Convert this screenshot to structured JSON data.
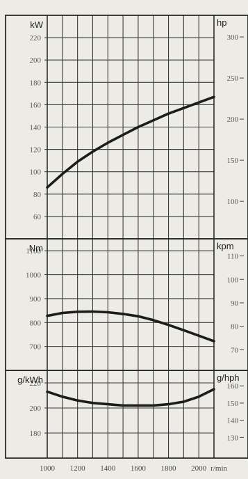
{
  "chart_data": [
    {
      "type": "line",
      "title": "",
      "x_axis": {
        "label": "",
        "range": [
          1000,
          2100
        ]
      },
      "left_axis": {
        "unit": "kW",
        "range": [
          40,
          240
        ],
        "ticks": [
          60,
          80,
          100,
          120,
          140,
          160,
          180,
          200,
          220
        ]
      },
      "right_axis": {
        "unit": "hp",
        "range": [
          54.4,
          326.3
        ],
        "ticks": [
          100,
          150,
          200,
          250,
          300
        ]
      },
      "grid": true,
      "series": [
        {
          "x": [
            1000,
            1100,
            1200,
            1300,
            1400,
            1500,
            1600,
            1700,
            1800,
            1900,
            2000,
            2100
          ],
          "y": [
            86,
            98,
            109,
            118,
            126,
            133,
            140,
            146,
            152,
            157,
            162,
            167
          ]
        }
      ]
    },
    {
      "type": "line",
      "title": "",
      "x_axis": {
        "label": "",
        "range": [
          1000,
          2100
        ]
      },
      "left_axis": {
        "unit": "Nm",
        "range": [
          600,
          1150
        ],
        "ticks": [
          700,
          800,
          900,
          1000,
          1100
        ]
      },
      "right_axis": {
        "unit": "kpm",
        "range": [
          61.2,
          117.3
        ],
        "ticks": [
          70,
          80,
          90,
          100,
          110
        ]
      },
      "grid": true,
      "series": [
        {
          "x": [
            1000,
            1100,
            1200,
            1300,
            1400,
            1500,
            1600,
            1700,
            1800,
            1900,
            2000,
            2100
          ],
          "y": [
            828,
            840,
            845,
            846,
            843,
            836,
            826,
            810,
            790,
            768,
            745,
            722
          ]
        }
      ]
    },
    {
      "type": "line",
      "title": "",
      "x_axis": {
        "label": "",
        "range": [
          1000,
          2100
        ],
        "ticks": [
          1000,
          1200,
          1400,
          1600,
          1800,
          2000
        ],
        "tick_labels": [
          "1000",
          "1200",
          "1400",
          "1600",
          "1800",
          "2000"
        ],
        "unit": "r/min"
      },
      "left_axis": {
        "unit": "g/kWh",
        "range": [
          160,
          230
        ],
        "ticks": [
          180,
          200,
          220
        ]
      },
      "right_axis": {
        "unit": "g/hph",
        "range": [
          118,
          169
        ],
        "ticks": [
          130,
          140,
          150,
          160
        ]
      },
      "grid": true,
      "series": [
        {
          "x": [
            1000,
            1100,
            1200,
            1300,
            1400,
            1500,
            1600,
            1700,
            1800,
            1900,
            2000,
            2100
          ],
          "y": [
            213,
            209,
            206,
            204,
            203,
            202,
            202,
            202,
            203,
            205,
            209,
            215
          ]
        }
      ]
    }
  ]
}
